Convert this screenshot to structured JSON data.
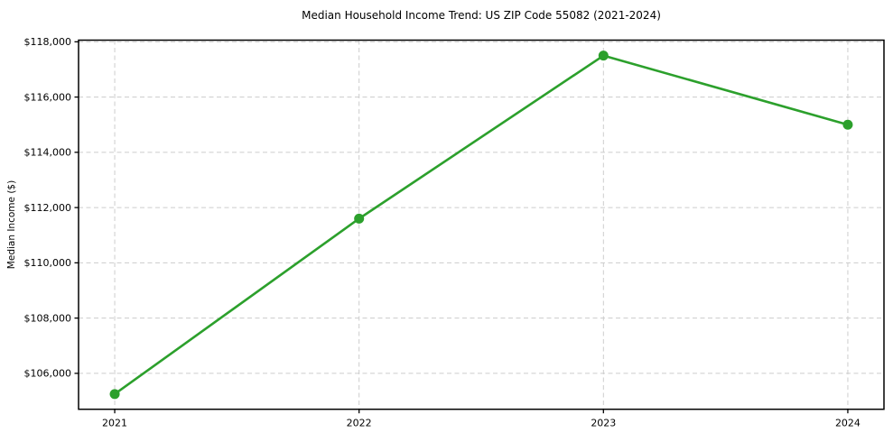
{
  "chart_data": {
    "type": "line",
    "title": "Median Household Income Trend: US ZIP Code 55082 (2021-2024)",
    "xlabel": "",
    "ylabel": "Median Income ($)",
    "x": [
      2021,
      2022,
      2023,
      2024
    ],
    "x_tick_labels": [
      "2021",
      "2022",
      "2023",
      "2024"
    ],
    "series": [
      {
        "name": "Median Household Income",
        "values": [
          105250,
          111600,
          117500,
          115000
        ],
        "color": "#2ca02c",
        "marker": "circle"
      }
    ],
    "y_ticks": [
      {
        "value": 106000,
        "label": "$106,000"
      },
      {
        "value": 108000,
        "label": "$108,000"
      },
      {
        "value": 110000,
        "label": "$110,000"
      },
      {
        "value": 112000,
        "label": "$112,000"
      },
      {
        "value": 114000,
        "label": "$114,000"
      },
      {
        "value": 116000,
        "label": "$116,000"
      },
      {
        "value": 118000,
        "label": "$118,000"
      }
    ],
    "ylim": [
      104700,
      118060
    ],
    "xlim": [
      2020.852,
      2024.148
    ],
    "grid": true,
    "legend_position": "none",
    "colors": {
      "line": "#2ca02c",
      "marker": "#2ca02c",
      "grid": "#cccccc",
      "axis": "#000000",
      "background": "#ffffff"
    }
  }
}
